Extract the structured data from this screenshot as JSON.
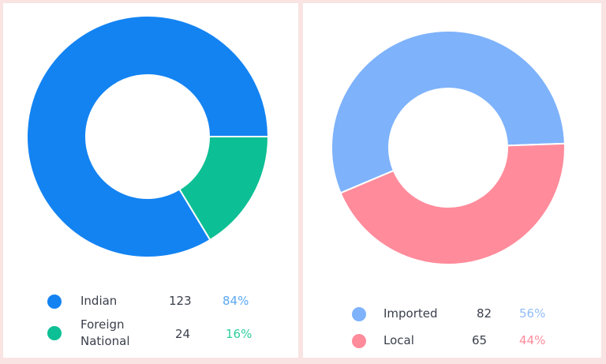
{
  "chart_data": [
    {
      "type": "pie",
      "donut": true,
      "start_angle_deg": 0,
      "slices": [
        {
          "label": "Indian",
          "value": 123,
          "percent_label": "84%",
          "color": "#1383f2"
        },
        {
          "label": "Foreign National",
          "label_lines": [
            "Foreign",
            "National"
          ],
          "value": 24,
          "percent_label": "16%",
          "color": "#0dbf94"
        }
      ],
      "legend_position": "bottom"
    },
    {
      "type": "pie",
      "donut": true,
      "start_angle_deg": 2,
      "slices": [
        {
          "label": "Imported",
          "value": 82,
          "percent_label": "56%",
          "color": "#7eb2fb"
        },
        {
          "label": "Local",
          "value": 65,
          "percent_label": "44%",
          "color": "#ff8b9b"
        }
      ],
      "legend_position": "bottom"
    }
  ],
  "colors": {
    "background": "#f9e3e3",
    "panel": "#ffffff",
    "percent_left": "#5aa8f0",
    "percent_left_2": "#2ecf9e",
    "percent_right": "#91bdf7",
    "percent_right_2": "#ff8b9b"
  }
}
